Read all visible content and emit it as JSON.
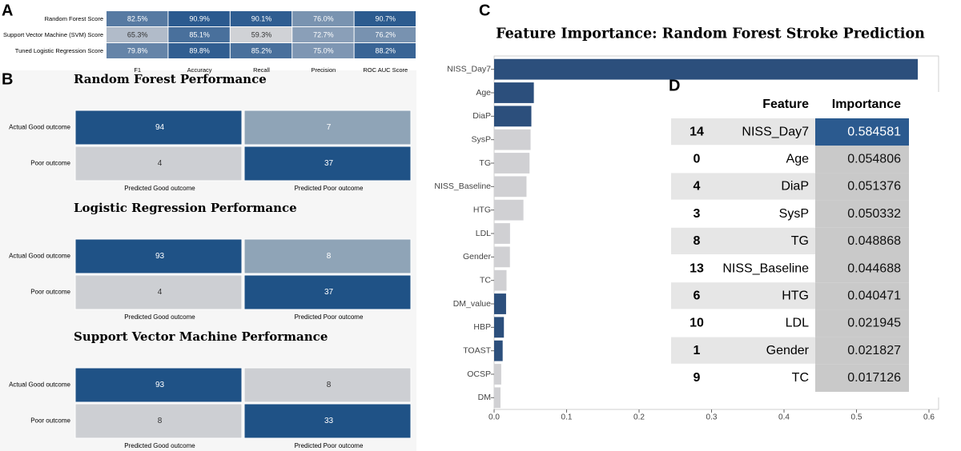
{
  "panel_labels": [
    "A",
    "B",
    "C",
    "D"
  ],
  "chart_data": [
    {
      "type": "heatmap",
      "rows": [
        "Random Forest Score",
        "Support Vector Machine (SVM) Score",
        "Tuned Logistic Regression Score"
      ],
      "columns": [
        "F1",
        "Accuracy",
        "Recall",
        "Precision",
        "ROC AUC Score"
      ],
      "values": [
        [
          82.5,
          90.9,
          90.1,
          76.0,
          90.7
        ],
        [
          65.3,
          85.1,
          59.3,
          72.7,
          76.2
        ],
        [
          79.8,
          89.8,
          85.2,
          75.0,
          88.2
        ]
      ],
      "value_labels": [
        [
          "82.5%",
          "90.9%",
          "90.1%",
          "76.0%",
          "90.7%"
        ],
        [
          "65.3%",
          "85.1%",
          "59.3%",
          "72.7%",
          "76.2%"
        ],
        [
          "79.8%",
          "89.8%",
          "85.2%",
          "75.0%",
          "88.2%"
        ]
      ],
      "cmap": [
        "#d0d2d6",
        "#2b5a8f"
      ]
    },
    {
      "type": "confusion",
      "title": "Random Forest Performance",
      "row_labels": [
        "Actual Good outcome",
        "Poor outcome"
      ],
      "col_labels": [
        "Predicted Good outcome",
        "Predicted Poor outcome"
      ],
      "values": [
        [
          94,
          7
        ],
        [
          4,
          37
        ]
      ],
      "colors": [
        [
          "#1f5286",
          "#8fa4b7"
        ],
        [
          "#cdcfd3",
          "#1f5286"
        ]
      ]
    },
    {
      "type": "confusion",
      "title": "Logistic Regression Performance",
      "row_labels": [
        "Actual Good outcome",
        "Poor outcome"
      ],
      "col_labels": [
        "Predicted Good outcome",
        "Predicted Poor outcome"
      ],
      "values": [
        [
          93,
          8
        ],
        [
          4,
          37
        ]
      ],
      "colors": [
        [
          "#1f5286",
          "#8fa4b7"
        ],
        [
          "#cdcfd3",
          "#1f5286"
        ]
      ]
    },
    {
      "type": "confusion",
      "title": "Support Vector Machine Performance",
      "row_labels": [
        "Actual Good outcome",
        "Poor outcome"
      ],
      "col_labels": [
        "Predicted Good outcome",
        "Predicted Poor outcome"
      ],
      "values": [
        [
          93,
          8
        ],
        [
          8,
          33
        ]
      ],
      "colors": [
        [
          "#1f5286",
          "#cdcfd3"
        ],
        [
          "#cdcfd3",
          "#1f5286"
        ]
      ]
    },
    {
      "type": "barh",
      "title": "Feature Importance: Random Forest Stroke Prediction",
      "categories": [
        "NISS_Day7",
        "Age",
        "DiaP",
        "SysP",
        "TG",
        "NISS_Baseline",
        "HTG",
        "LDL",
        "Gender",
        "TC",
        "DM_value",
        "HBP",
        "TOAST",
        "OCSP",
        "DM"
      ],
      "values": [
        0.584581,
        0.054806,
        0.051376,
        0.050332,
        0.048868,
        0.044688,
        0.040471,
        0.021945,
        0.021827,
        0.017126,
        0.0165,
        0.0135,
        0.0118,
        0.0098,
        0.0088
      ],
      "colors": [
        "#2c4f7c",
        "#2c4f7c",
        "#2c4f7c",
        "#d0d0d3",
        "#d0d0d3",
        "#d0d0d3",
        "#d0d0d3",
        "#d0d0d3",
        "#d0d0d3",
        "#d0d0d3",
        "#2c4f7c",
        "#2c4f7c",
        "#2c4f7c",
        "#d0d0d3",
        "#d0d0d3"
      ],
      "xlim": [
        0,
        0.6
      ],
      "xticks": [
        {
          "value": 0,
          "label": "0.0"
        },
        0.1,
        0.2,
        0.3,
        0.4,
        0.5,
        0.6
      ]
    }
  ],
  "table": {
    "header": [
      "Feature",
      "Importance"
    ],
    "rows": [
      [
        14,
        "NISS_Day7",
        0.584581
      ],
      [
        0,
        "Age",
        0.054806
      ],
      [
        4,
        "DiaP",
        0.051376
      ],
      [
        3,
        "SysP",
        0.050332
      ],
      [
        8,
        "TG",
        0.048868
      ],
      [
        13,
        "NISS_Baseline",
        0.044688
      ],
      [
        6,
        "HTG",
        0.040471
      ],
      [
        10,
        "LDL",
        0.021945
      ],
      [
        1,
        "Gender",
        0.021827
      ],
      [
        9,
        "TC",
        0.017126
      ]
    ]
  }
}
